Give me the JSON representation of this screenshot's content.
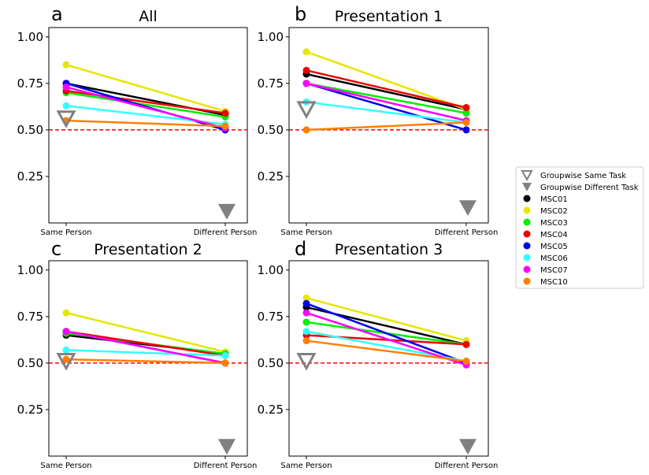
{
  "legend": {
    "placement": "right",
    "entries": [
      {
        "label": "Groupwise Same Task",
        "marker": "open-triangle-down",
        "color": "#808080"
      },
      {
        "label": "Groupwise Different Task",
        "marker": "filled-triangle-down",
        "color": "#808080"
      },
      {
        "label": "MSC01",
        "marker": "circle",
        "color": "#000000"
      },
      {
        "label": "MSC02",
        "marker": "circle",
        "color": "#e6e600"
      },
      {
        "label": "MSC03",
        "marker": "circle",
        "color": "#00ee00"
      },
      {
        "label": "MSC04",
        "marker": "circle",
        "color": "#ee0000"
      },
      {
        "label": "MSC05",
        "marker": "circle",
        "color": "#0000ee"
      },
      {
        "label": "MSC06",
        "marker": "circle",
        "color": "#33ffff"
      },
      {
        "label": "MSC07",
        "marker": "circle",
        "color": "#ff00ff"
      },
      {
        "label": "MSC10",
        "marker": "circle",
        "color": "#ff7f00"
      }
    ]
  },
  "chart_data": [
    {
      "type": "line",
      "panel": "a",
      "title": "All",
      "categories": [
        "Same Person",
        "Different Person"
      ],
      "yticks": [
        "0.25",
        "0.50",
        "0.75",
        "1.00"
      ],
      "ylim": [
        0.0,
        1.05
      ],
      "reference_line": {
        "y": 0.5,
        "style": "dashed",
        "color": "#ff0000"
      },
      "groupwise_same_task": 0.56,
      "groupwise_different_task": 0.06,
      "series": [
        {
          "name": "MSC01",
          "color": "#000000",
          "values": [
            0.75,
            0.58
          ]
        },
        {
          "name": "MSC02",
          "color": "#e6e600",
          "values": [
            0.85,
            0.6
          ]
        },
        {
          "name": "MSC03",
          "color": "#00ee00",
          "values": [
            0.7,
            0.57
          ]
        },
        {
          "name": "MSC04",
          "color": "#ee0000",
          "values": [
            0.71,
            0.59
          ]
        },
        {
          "name": "MSC05",
          "color": "#0000ee",
          "values": [
            0.75,
            0.5
          ]
        },
        {
          "name": "MSC06",
          "color": "#33ffff",
          "values": [
            0.63,
            0.53
          ]
        },
        {
          "name": "MSC07",
          "color": "#ff00ff",
          "values": [
            0.73,
            0.51
          ]
        },
        {
          "name": "MSC10",
          "color": "#ff7f00",
          "values": [
            0.55,
            0.52
          ]
        }
      ]
    },
    {
      "type": "line",
      "panel": "b",
      "title": "Presentation 1",
      "categories": [
        "Same Person",
        "Different Person"
      ],
      "yticks": [
        "0.25",
        "0.50",
        "0.75",
        "1.00"
      ],
      "ylim": [
        0.0,
        1.05
      ],
      "reference_line": {
        "y": 0.5,
        "style": "dashed",
        "color": "#ff0000"
      },
      "groupwise_same_task": 0.61,
      "groupwise_different_task": 0.08,
      "series": [
        {
          "name": "MSC01",
          "color": "#000000",
          "values": [
            0.8,
            0.61
          ]
        },
        {
          "name": "MSC02",
          "color": "#e6e600",
          "values": [
            0.92,
            0.61
          ]
        },
        {
          "name": "MSC03",
          "color": "#00ee00",
          "values": [
            0.75,
            0.59
          ]
        },
        {
          "name": "MSC04",
          "color": "#ee0000",
          "values": [
            0.82,
            0.62
          ]
        },
        {
          "name": "MSC05",
          "color": "#0000ee",
          "values": [
            0.75,
            0.5
          ]
        },
        {
          "name": "MSC06",
          "color": "#33ffff",
          "values": [
            0.65,
            0.54
          ]
        },
        {
          "name": "MSC07",
          "color": "#ff00ff",
          "values": [
            0.75,
            0.55
          ]
        },
        {
          "name": "MSC10",
          "color": "#ff7f00",
          "values": [
            0.5,
            0.54
          ]
        }
      ]
    },
    {
      "type": "line",
      "panel": "c",
      "title": "Presentation 2",
      "categories": [
        "Same Person",
        "Different Person"
      ],
      "yticks": [
        "0.25",
        "0.50",
        "0.75",
        "1.00"
      ],
      "ylim": [
        0.0,
        1.05
      ],
      "reference_line": {
        "y": 0.5,
        "style": "dashed",
        "color": "#ff0000"
      },
      "groupwise_same_task": 0.51,
      "groupwise_different_task": 0.05,
      "series": [
        {
          "name": "MSC01",
          "color": "#000000",
          "values": [
            0.65,
            0.55
          ]
        },
        {
          "name": "MSC02",
          "color": "#e6e600",
          "values": [
            0.77,
            0.56
          ]
        },
        {
          "name": "MSC03",
          "color": "#00ee00",
          "values": [
            0.66,
            0.55
          ]
        },
        {
          "name": "MSC04",
          "color": "#ee0000",
          "values": [
            0.67,
            0.54
          ]
        },
        {
          "name": "MSC05",
          "color": "#0000ee",
          "values": [
            0.67,
            0.5
          ]
        },
        {
          "name": "MSC06",
          "color": "#33ffff",
          "values": [
            0.57,
            0.54
          ]
        },
        {
          "name": "MSC07",
          "color": "#ff00ff",
          "values": [
            0.67,
            0.5
          ]
        },
        {
          "name": "MSC10",
          "color": "#ff7f00",
          "values": [
            0.52,
            0.5
          ]
        }
      ]
    },
    {
      "type": "line",
      "panel": "d",
      "title": "Presentation 3",
      "categories": [
        "Same Person",
        "Different Person"
      ],
      "yticks": [
        "0.25",
        "0.50",
        "0.75",
        "1.00"
      ],
      "ylim": [
        0.0,
        1.05
      ],
      "reference_line": {
        "y": 0.5,
        "style": "dashed",
        "color": "#ff0000"
      },
      "groupwise_same_task": 0.51,
      "groupwise_different_task": 0.05,
      "series": [
        {
          "name": "MSC01",
          "color": "#000000",
          "values": [
            0.8,
            0.6
          ]
        },
        {
          "name": "MSC02",
          "color": "#e6e600",
          "values": [
            0.85,
            0.62
          ]
        },
        {
          "name": "MSC03",
          "color": "#00ee00",
          "values": [
            0.72,
            0.6
          ]
        },
        {
          "name": "MSC04",
          "color": "#ee0000",
          "values": [
            0.65,
            0.6
          ]
        },
        {
          "name": "MSC05",
          "color": "#0000ee",
          "values": [
            0.82,
            0.5
          ]
        },
        {
          "name": "MSC06",
          "color": "#33ffff",
          "values": [
            0.67,
            0.51
          ]
        },
        {
          "name": "MSC07",
          "color": "#ff00ff",
          "values": [
            0.77,
            0.49
          ]
        },
        {
          "name": "MSC10",
          "color": "#ff7f00",
          "values": [
            0.62,
            0.51
          ]
        }
      ]
    }
  ]
}
